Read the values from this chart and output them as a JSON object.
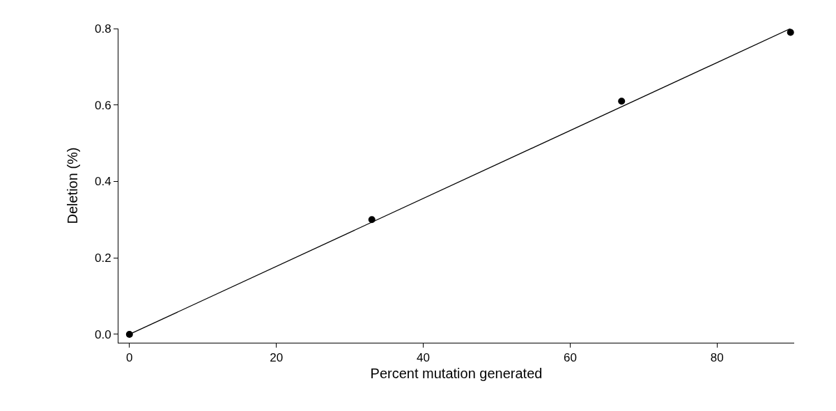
{
  "chart_data": {
    "type": "scatter",
    "xlabel": "Percent mutation generated",
    "ylabel": "Deletion (%)",
    "xlim": [
      -1.5,
      90.5
    ],
    "ylim": [
      -0.022,
      0.8
    ],
    "xticks": [
      0,
      20,
      40,
      60,
      80
    ],
    "yticks": [
      {
        "value": 0,
        "label": "0.0"
      },
      {
        "value": 0.2,
        "label": "0.2"
      },
      {
        "value": 0.4,
        "label": "0.4"
      },
      {
        "value": 0.6,
        "label": "0.6"
      },
      {
        "value": 0.8,
        "label": "0.8"
      }
    ],
    "grid": false,
    "series": [
      {
        "type": "line",
        "x": [
          0,
          90
        ],
        "values": [
          0,
          0.8
        ],
        "color": "#000000",
        "marker": "none",
        "line_style": "solid"
      },
      {
        "type": "scatter",
        "x": [
          0,
          33,
          67,
          90
        ],
        "values": [
          0,
          0.3,
          0.61,
          0.79
        ],
        "color": "#000000",
        "marker": "circle"
      }
    ]
  }
}
